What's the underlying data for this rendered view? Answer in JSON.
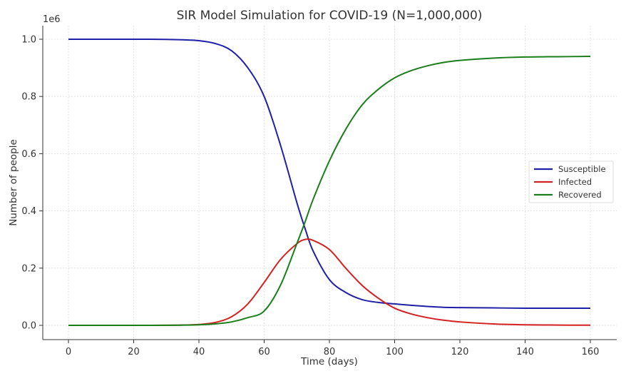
{
  "chart_data": {
    "type": "line",
    "title": "SIR Model Simulation for COVID-19 (N=1,000,000)",
    "xlabel": "Time (days)",
    "ylabel": "Number of people",
    "y_offset_label": "1e6",
    "xlim": [
      0,
      160
    ],
    "ylim": [
      0,
      1.0
    ],
    "xticks": [
      0,
      20,
      40,
      60,
      80,
      100,
      120,
      140,
      160
    ],
    "yticks": [
      "0.0",
      "0.2",
      "0.4",
      "0.6",
      "0.8",
      "1.0"
    ],
    "grid": true,
    "legend_position": "center-right",
    "x": [
      0,
      5,
      10,
      15,
      20,
      25,
      30,
      35,
      40,
      45,
      50,
      55,
      60,
      65,
      70,
      72.5,
      75,
      80,
      85,
      90,
      95,
      100,
      105,
      110,
      115,
      120,
      130,
      140,
      150,
      160
    ],
    "series": [
      {
        "name": "Susceptible",
        "color": "#1f1fa8",
        "values": [
          1.0,
          1.0,
          1.0,
          1.0,
          1.0,
          1.0,
          0.9995,
          0.998,
          0.995,
          0.985,
          0.96,
          0.9,
          0.8,
          0.63,
          0.43,
          0.34,
          0.26,
          0.16,
          0.115,
          0.09,
          0.08,
          0.075,
          0.07,
          0.066,
          0.063,
          0.062,
          0.061,
          0.06,
          0.06,
          0.06
        ]
      },
      {
        "name": "Infected",
        "color": "#d42020",
        "values": [
          0.0,
          0.0,
          0.0,
          0.0,
          0.0,
          0.0,
          0.0003,
          0.001,
          0.003,
          0.01,
          0.03,
          0.075,
          0.15,
          0.23,
          0.285,
          0.3,
          0.297,
          0.265,
          0.2,
          0.14,
          0.095,
          0.06,
          0.04,
          0.027,
          0.018,
          0.012,
          0.005,
          0.002,
          0.001,
          0.0005
        ]
      },
      {
        "name": "Recovered",
        "color": "#1a7f1a",
        "values": [
          0.0,
          0.0,
          0.0,
          0.0,
          0.0,
          0.0,
          0.0002,
          0.0008,
          0.002,
          0.005,
          0.012,
          0.027,
          0.05,
          0.14,
          0.285,
          0.36,
          0.44,
          0.575,
          0.685,
          0.77,
          0.825,
          0.865,
          0.89,
          0.907,
          0.919,
          0.926,
          0.934,
          0.938,
          0.939,
          0.94
        ]
      }
    ]
  }
}
